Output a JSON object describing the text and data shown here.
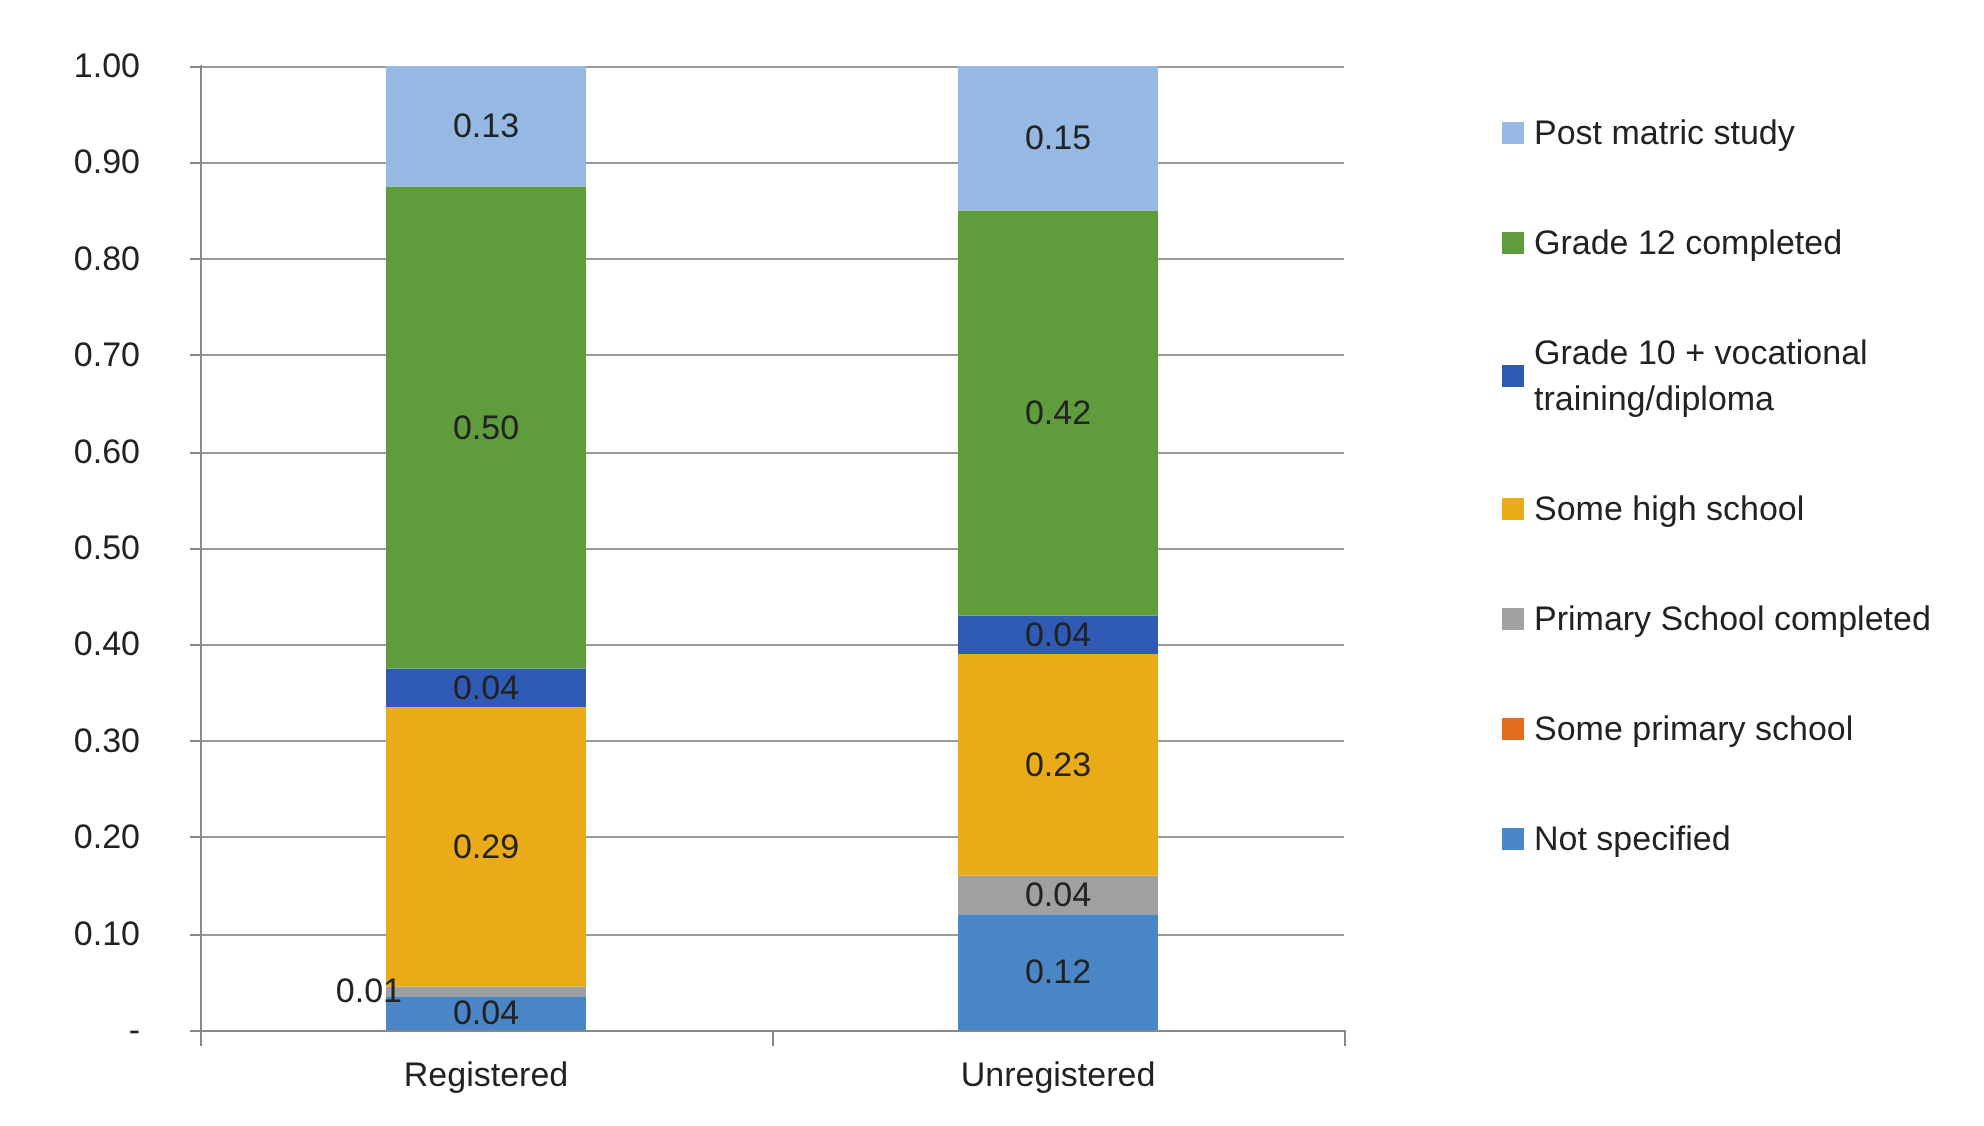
{
  "chart_data": {
    "type": "bar",
    "stacked": true,
    "categories": [
      "Registered",
      "Unregistered"
    ],
    "series": [
      {
        "name": "Not specified",
        "color": "#4a86c5",
        "values": [
          0.035,
          0.12
        ],
        "value_labels": [
          "0.04",
          "0.12"
        ]
      },
      {
        "name": "Some primary school",
        "color": "#e36c1f",
        "values": [
          0,
          0
        ],
        "value_labels": [
          null,
          null
        ]
      },
      {
        "name": "Primary School completed",
        "color": "#a0a0a0",
        "values": [
          0.01,
          0.04
        ],
        "value_labels": [
          "0.01",
          "0.04"
        ]
      },
      {
        "name": "Some high school",
        "color": "#e9ab17",
        "values": [
          0.29,
          0.23
        ],
        "value_labels": [
          "0.29",
          "0.23"
        ]
      },
      {
        "name": "Grade 10 + vocational training/diploma",
        "color": "#2f5bb7",
        "values": [
          0.04,
          0.04
        ],
        "value_labels": [
          "0.04",
          "0.04"
        ]
      },
      {
        "name": "Grade 12 completed",
        "color": "#5f9c3c",
        "values": [
          0.5,
          0.42
        ],
        "value_labels": [
          "0.50",
          "0.42"
        ]
      },
      {
        "name": "Post matric study",
        "color": "#95b9e3",
        "values": [
          0.125,
          0.15
        ],
        "value_labels": [
          "0.13",
          "0.15"
        ]
      }
    ],
    "ylim": [
      0,
      1
    ],
    "yticks": [
      {
        "value": 0,
        "label": "-"
      },
      {
        "value": 0.1,
        "label": "0.10"
      },
      {
        "value": 0.2,
        "label": "0.20"
      },
      {
        "value": 0.3,
        "label": "0.30"
      },
      {
        "value": 0.4,
        "label": "0.40"
      },
      {
        "value": 0.5,
        "label": "0.50"
      },
      {
        "value": 0.6,
        "label": "0.60"
      },
      {
        "value": 0.7,
        "label": "0.70"
      },
      {
        "value": 0.8,
        "label": "0.80"
      },
      {
        "value": 0.9,
        "label": "0.90"
      },
      {
        "value": 1.0,
        "label": "1.00"
      }
    ],
    "grid": "y",
    "legend": "right"
  }
}
